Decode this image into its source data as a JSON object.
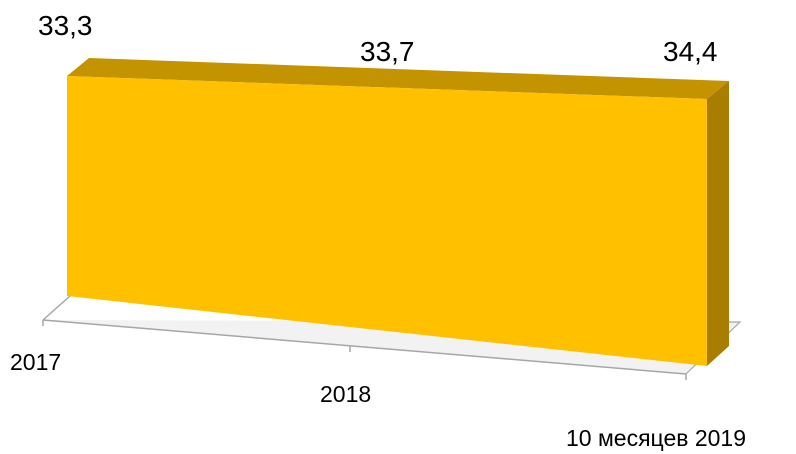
{
  "chart_data": {
    "type": "area",
    "categories": [
      "2017",
      "2018",
      "10 месяцев 2019"
    ],
    "values": [
      33.3,
      33.7,
      34.4
    ],
    "value_labels": [
      "33,3",
      "33,7",
      "34,4"
    ],
    "colors": {
      "front": "#FFC000",
      "top": "#C49300",
      "side": "#A97D00",
      "floor": "#F2F2F2",
      "axis": "#A6A6A6"
    }
  }
}
